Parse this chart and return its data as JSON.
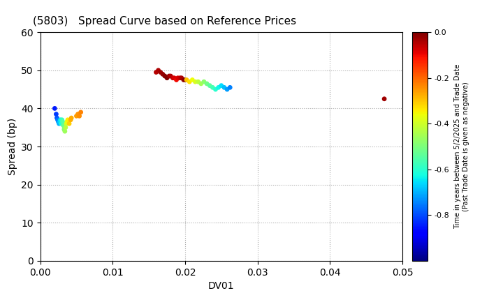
{
  "title": "(5803)   Spread Curve based on Reference Prices",
  "xlabel": "DV01",
  "ylabel": "Spread (bp)",
  "xlim": [
    0.0,
    0.05
  ],
  "ylim": [
    0,
    60
  ],
  "xticks": [
    0.0,
    0.01,
    0.02,
    0.03,
    0.04,
    0.05
  ],
  "yticks": [
    0,
    10,
    20,
    30,
    40,
    50,
    60
  ],
  "colorbar_label_line1": "Time in years between 5/2/2025 and Trade Date",
  "colorbar_label_line2": "(Past Trade Date is given as negative)",
  "colorbar_vmin": -1.0,
  "colorbar_vmax": 0.0,
  "colorbar_ticks": [
    0.0,
    -0.2,
    -0.4,
    -0.6,
    -0.8
  ],
  "point_size": 15,
  "background_color": "#ffffff",
  "grid_color": "#aaaaaa",
  "cluster1_dv01": [
    0.002,
    0.0022,
    0.0023,
    0.0024,
    0.0025,
    0.0026,
    0.0027,
    0.0028,
    0.0029,
    0.003,
    0.0031,
    0.0032,
    0.0033,
    0.0034,
    0.0035,
    0.0036,
    0.0037,
    0.0038,
    0.004,
    0.0042,
    0.0043,
    0.005,
    0.0052,
    0.0054,
    0.0056
  ],
  "cluster1_spread": [
    40.0,
    38.5,
    37.5,
    37.0,
    36.5,
    36.0,
    36.5,
    37.0,
    36.0,
    37.0,
    36.5,
    35.5,
    34.5,
    34.0,
    35.0,
    36.0,
    36.5,
    37.0,
    36.0,
    37.0,
    37.5,
    38.0,
    38.5,
    38.0,
    39.0
  ],
  "cluster1_cvals": [
    -0.85,
    -0.82,
    -0.79,
    -0.76,
    -0.73,
    -0.7,
    -0.67,
    -0.64,
    -0.61,
    -0.58,
    -0.55,
    -0.52,
    -0.49,
    -0.46,
    -0.43,
    -0.4,
    -0.37,
    -0.34,
    -0.31,
    -0.28,
    -0.27,
    -0.26,
    -0.25,
    -0.24,
    -0.23
  ],
  "cluster2_dv01": [
    0.016,
    0.0163,
    0.0166,
    0.0169,
    0.0172,
    0.0175,
    0.0178,
    0.018,
    0.0183,
    0.0185,
    0.0188,
    0.019,
    0.0193,
    0.0195,
    0.0198,
    0.02
  ],
  "cluster2_spread": [
    49.5,
    50.0,
    49.5,
    49.0,
    48.5,
    48.0,
    48.5,
    48.5,
    48.0,
    48.0,
    47.5,
    48.0,
    48.0,
    48.0,
    47.5,
    47.5
  ],
  "cluster2_cvals": [
    -0.05,
    -0.04,
    -0.03,
    -0.02,
    -0.01,
    0.0,
    -0.02,
    -0.04,
    -0.06,
    -0.08,
    -0.1,
    -0.08,
    -0.06,
    -0.04,
    -0.02,
    0.0
  ],
  "cluster3_dv01": [
    0.0202,
    0.0206,
    0.021,
    0.0214,
    0.0218,
    0.0222,
    0.0226,
    0.023,
    0.0234,
    0.0238,
    0.0242,
    0.0246,
    0.025,
    0.0254,
    0.0258,
    0.0262
  ],
  "cluster3_spread": [
    47.5,
    47.0,
    47.5,
    47.0,
    47.0,
    46.5,
    47.0,
    46.5,
    46.0,
    45.5,
    45.0,
    45.5,
    46.0,
    45.5,
    45.0,
    45.5
  ],
  "cluster3_cvals": [
    -0.3,
    -0.33,
    -0.36,
    -0.39,
    -0.42,
    -0.45,
    -0.48,
    -0.51,
    -0.54,
    -0.57,
    -0.6,
    -0.63,
    -0.66,
    -0.69,
    -0.72,
    -0.75
  ],
  "single_dv01": [
    0.0475
  ],
  "single_spread": [
    42.5
  ],
  "single_cvals": [
    -0.03
  ]
}
